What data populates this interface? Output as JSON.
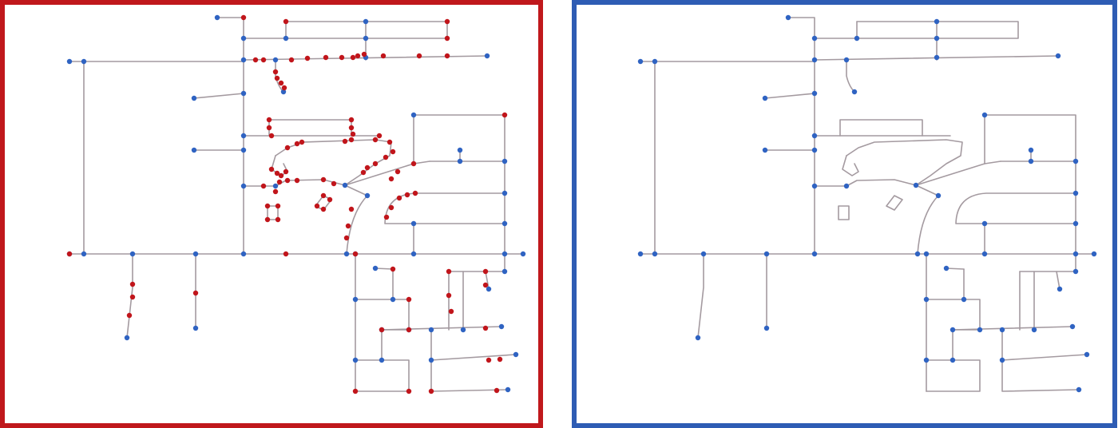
{
  "colors": {
    "left_frame": "#c0181c",
    "right_frame": "#2e5cb4",
    "edge": "#a49aa0",
    "intersection_node": "#2f63c2",
    "intermediate_node": "#c1151b"
  },
  "panels": [
    {
      "name": "left-panel",
      "frame_color_key": "left_frame",
      "shows_intermediate_nodes": true
    },
    {
      "name": "right-panel",
      "frame_color_key": "right_frame",
      "shows_intermediate_nodes": false
    }
  ]
}
